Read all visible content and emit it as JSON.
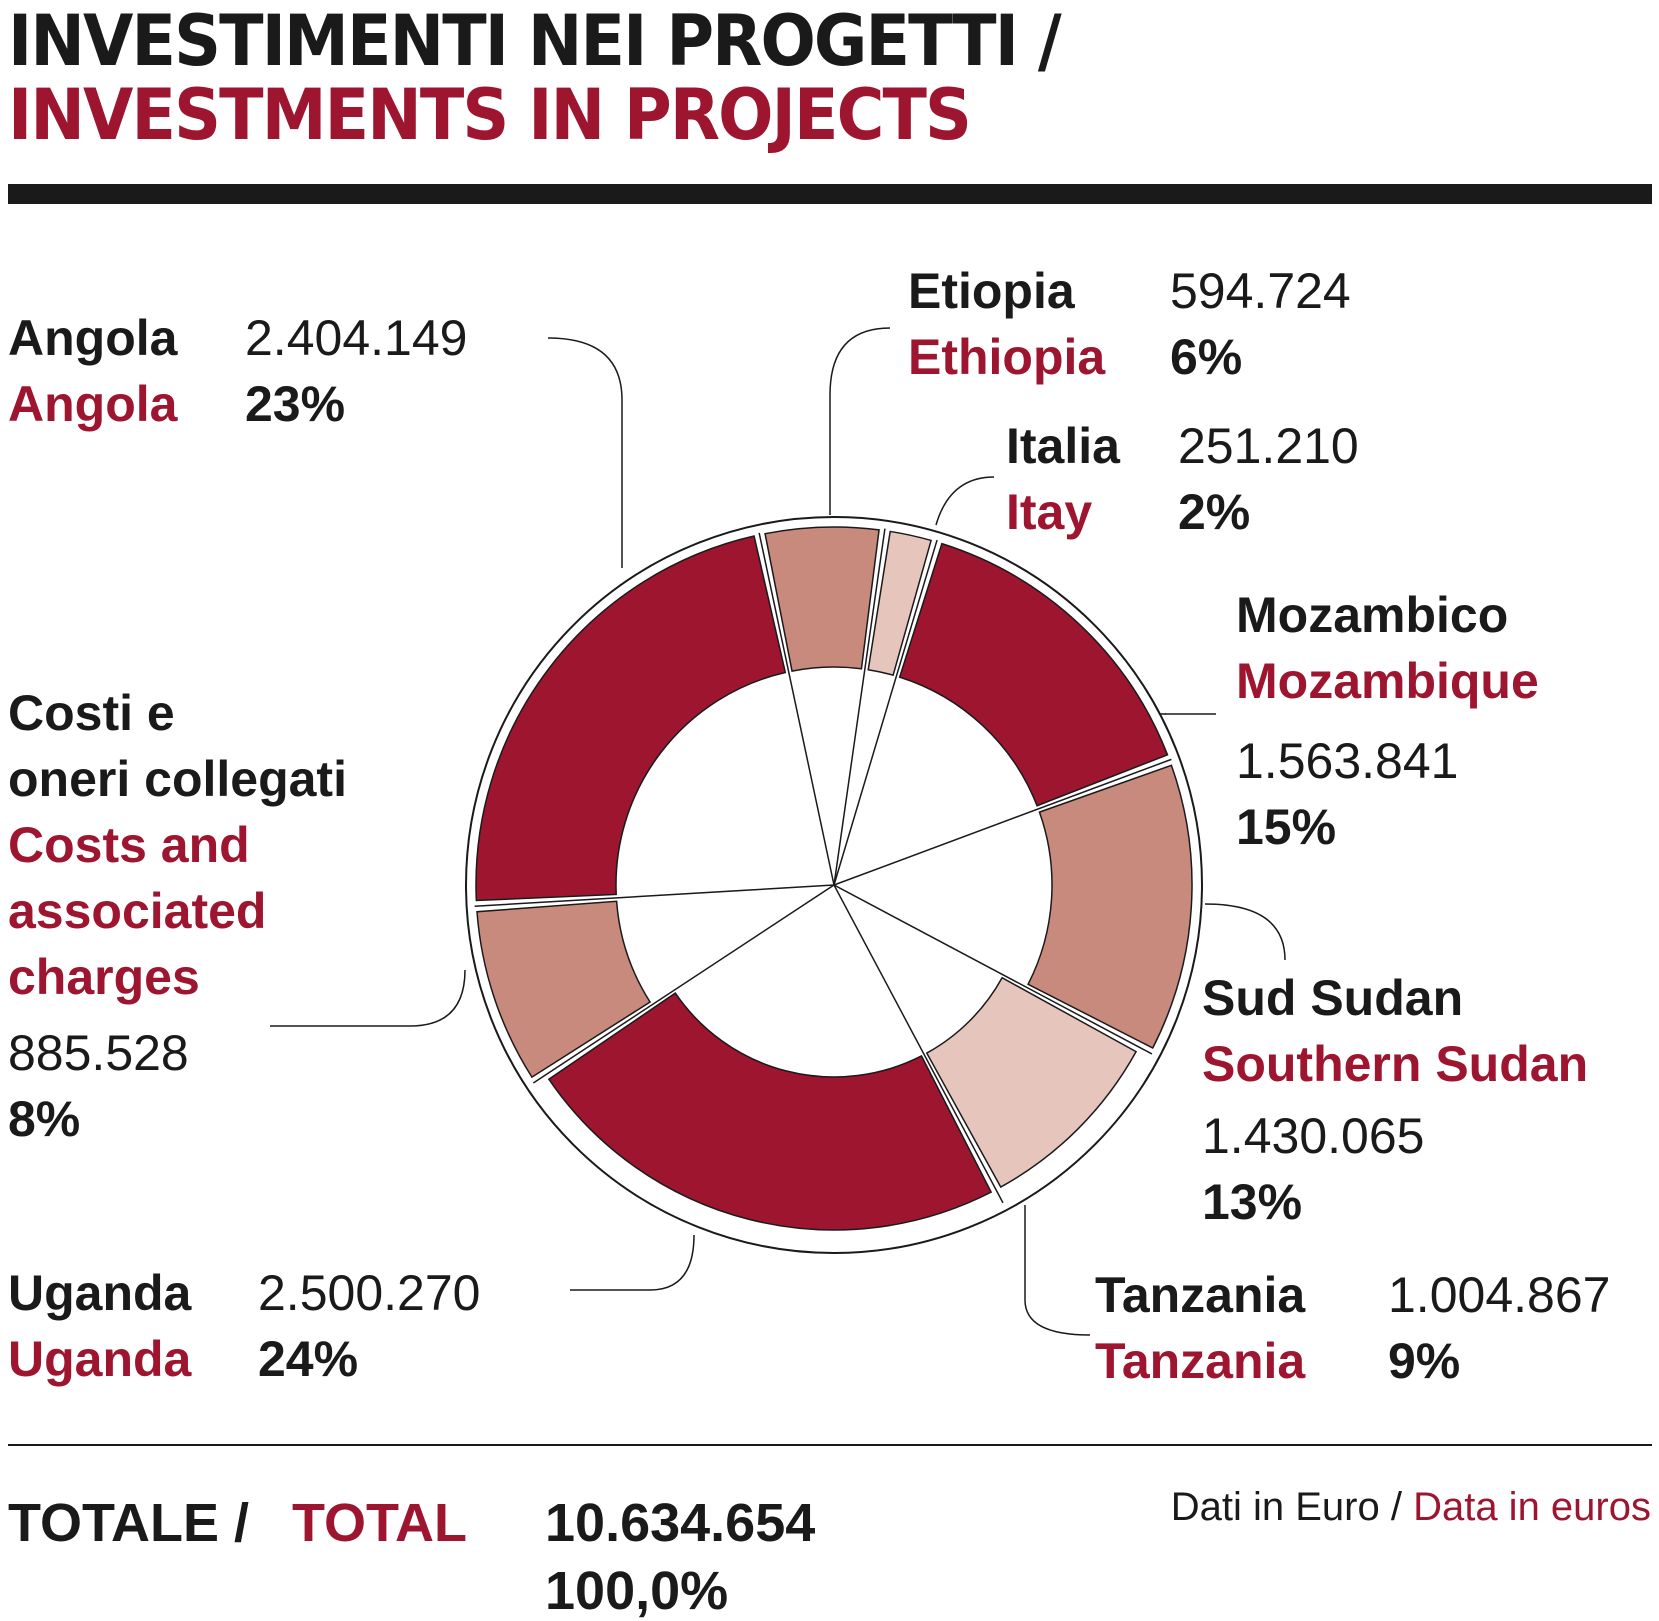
{
  "title": {
    "it": "INVESTIMENTI NEI PROGETTI /",
    "en": "INVESTMENTS IN PROJECTS"
  },
  "chart_data": {
    "type": "pie",
    "variant": "donut with exploded segments",
    "total_value": "10.634.654",
    "total_percent": "100,0%",
    "slices": [
      {
        "name_it": "Etiopia",
        "name_en": "Ethiopia",
        "value": 594724,
        "value_label": "594.724",
        "percent": "6%",
        "color": "#c98a7e",
        "ring": "outer"
      },
      {
        "name_it": "Italia",
        "name_en": "Itay",
        "value": 251210,
        "value_label": "251.210",
        "percent": "2%",
        "color": "#e6c5bc",
        "ring": "outer"
      },
      {
        "name_it": "Mozambico",
        "name_en": "Mozambique",
        "value": 1563841,
        "value_label": "1.563.841",
        "percent": "15%",
        "color": "#9e1530",
        "ring": "outer"
      },
      {
        "name_it": "Sud Sudan",
        "name_en": "Southern Sudan",
        "value": 1430065,
        "value_label": "1.430.065",
        "percent": "13%",
        "color": "#c98a7e",
        "ring": "outer"
      },
      {
        "name_it": "Tanzania",
        "name_en": "Tanzania",
        "value": 1004867,
        "value_label": "1.004.867",
        "percent": "9%",
        "color": "#e6c5bc",
        "ring": "inner"
      },
      {
        "name_it": "Uganda",
        "name_en": "Uganda",
        "value": 2500270,
        "value_label": "2.500.270",
        "percent": "24%",
        "color": "#9e1530",
        "ring": "inner"
      },
      {
        "name_it": "Costi e oneri collegati",
        "name_en": "Costs and associated charges",
        "value": 885528,
        "value_label": "885.528",
        "percent": "8%",
        "color": "#c98a7e",
        "ring": "outer"
      },
      {
        "name_it": "Angola",
        "name_en": "Angola",
        "value": 2404149,
        "value_label": "2.404.149",
        "percent": "23%",
        "color": "#9e1530",
        "ring": "outer"
      }
    ]
  },
  "labels": {
    "costs_it_1": "Costi e",
    "costs_it_2": "oneri collegati",
    "costs_en_1": "Costs and",
    "costs_en_2": "associated",
    "costs_en_3": "charges"
  },
  "total": {
    "label_it": "TOTALE /",
    "label_en": "TOTAL",
    "value": "10.634.654",
    "percent": "100,0%"
  },
  "unit": {
    "it": "Dati in Euro /",
    "en": "Data in euros"
  },
  "colors": {
    "accent_red": "#9e1530",
    "rose": "#c98a7e",
    "pale": "#e6c5bc",
    "text": "#1a1a1a"
  }
}
